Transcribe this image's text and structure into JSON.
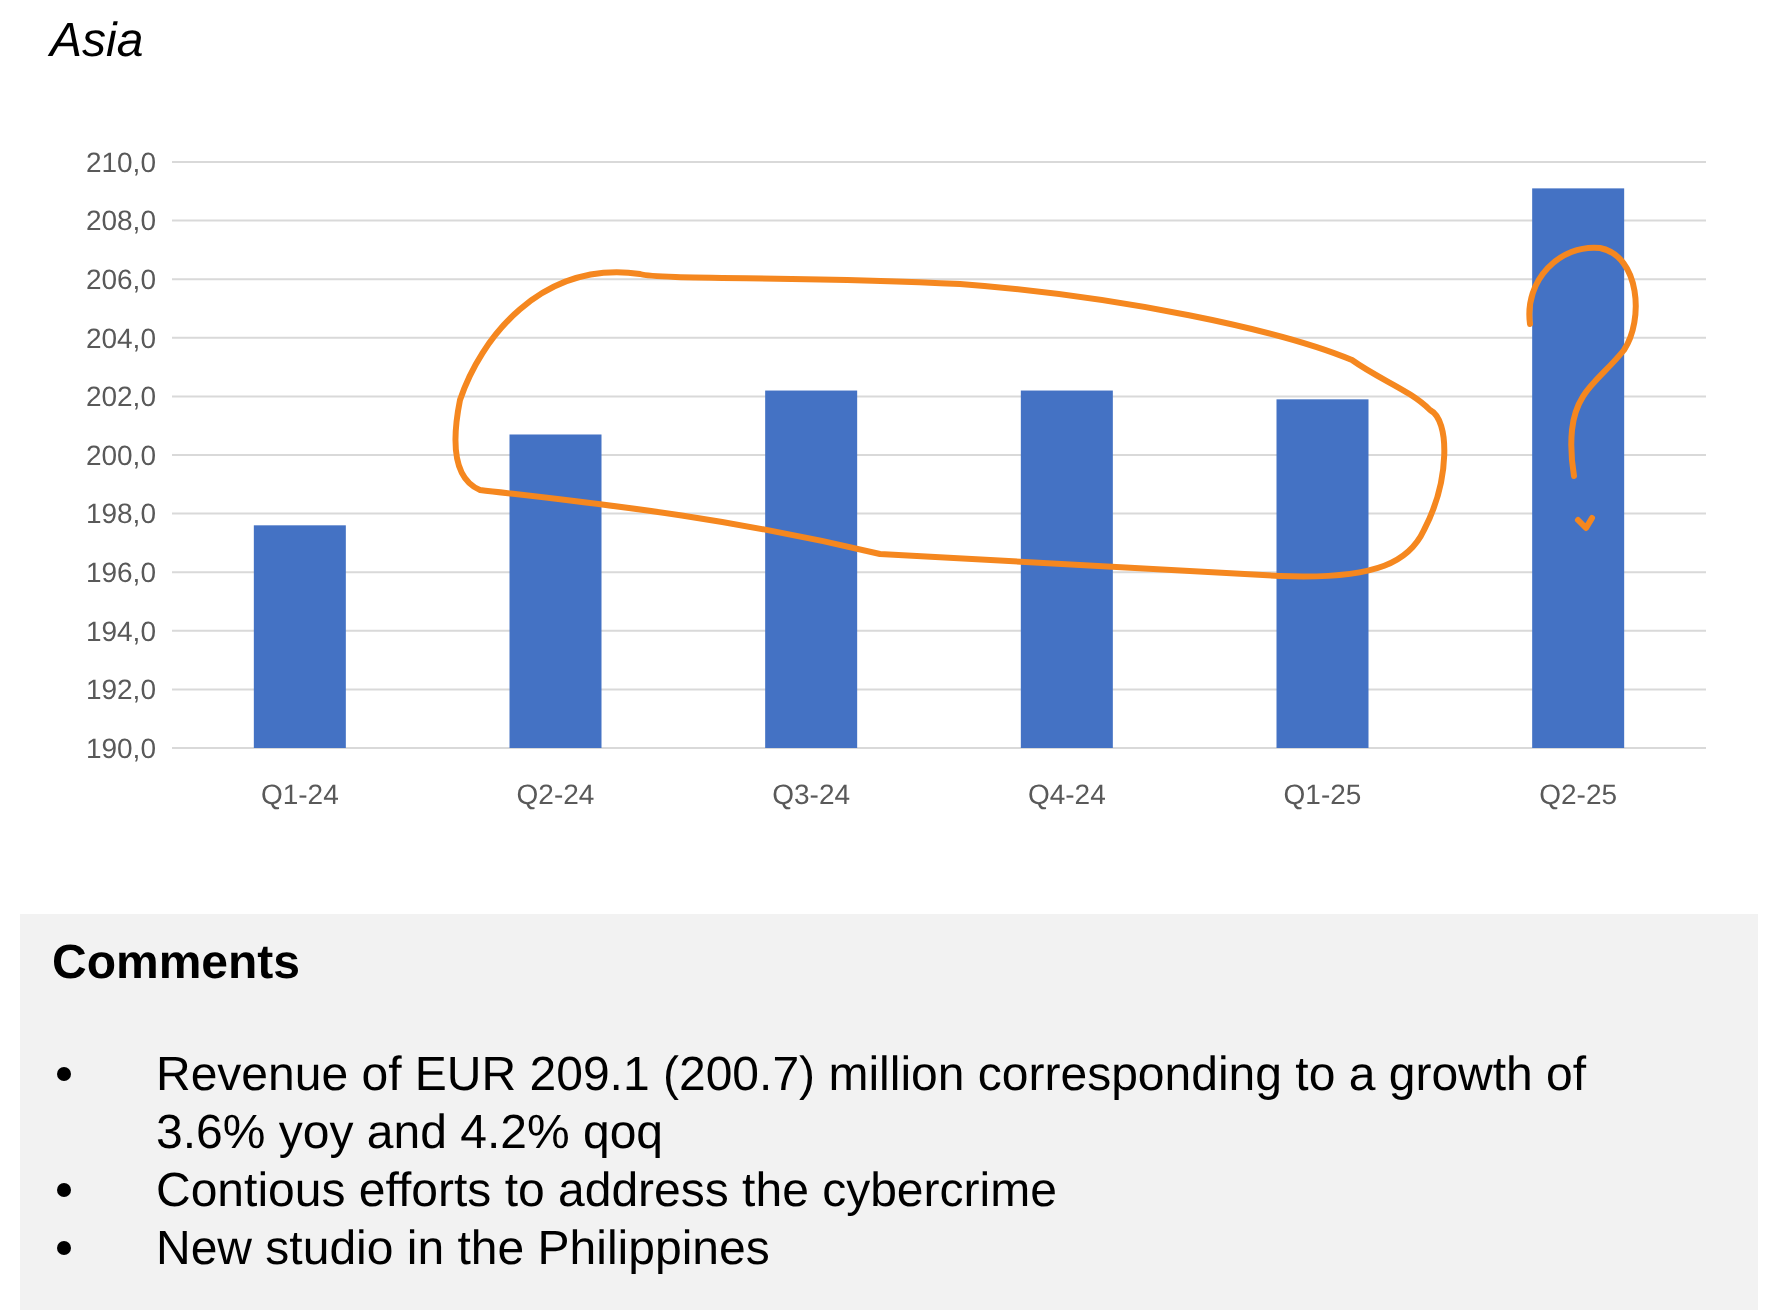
{
  "chart_data": {
    "type": "bar",
    "title": "Asia",
    "categories": [
      "Q1-24",
      "Q2-24",
      "Q3-24",
      "Q4-24",
      "Q1-25",
      "Q2-25"
    ],
    "values": [
      197.6,
      200.7,
      202.2,
      202.2,
      201.9,
      209.1
    ],
    "color": "#4472c4",
    "ylim": [
      190,
      210
    ],
    "yticks": [
      {
        "value": 190,
        "label": "190,0"
      },
      {
        "value": 192,
        "label": "192,0"
      },
      {
        "value": 194,
        "label": "194,0"
      },
      {
        "value": 196,
        "label": "196,0"
      },
      {
        "value": 198,
        "label": "198,0"
      },
      {
        "value": 200,
        "label": "200,0"
      },
      {
        "value": 202,
        "label": "202,0"
      },
      {
        "value": 204,
        "label": "204,0"
      },
      {
        "value": 206,
        "label": "206,0"
      },
      {
        "value": 208,
        "label": "208,0"
      },
      {
        "value": 210,
        "label": "210,0"
      }
    ],
    "grid": "y",
    "annotations": [
      "Comments",
      "Revenue of EUR 209.1 (200.7) million corresponding to a growth of 3.6% yoy and 4.2% qoq",
      "Contious efforts to address the cybercrime",
      "New studio in the Philippines"
    ]
  }
}
